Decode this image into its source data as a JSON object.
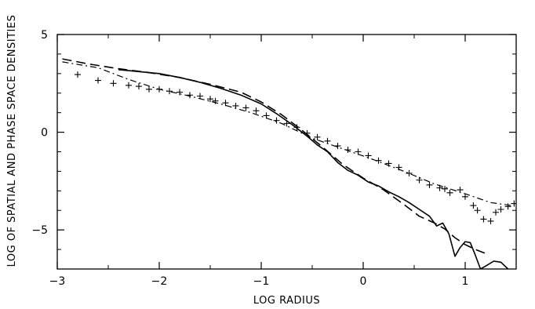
{
  "chart_data": {
    "type": "line",
    "title": "",
    "xlabel": "LOG RADIUS",
    "ylabel": "LOG OF SPATIAL AND PHASE SPACE DENSITIES",
    "xlim": [
      -3.0,
      1.5
    ],
    "ylim": [
      -7.0,
      5.0
    ],
    "x_ticks": [
      -3,
      -2,
      -1,
      0,
      1
    ],
    "x_tick_labels": [
      "−3",
      "−2",
      "−1",
      "0",
      "1"
    ],
    "y_ticks": [
      -5,
      0,
      5
    ],
    "y_tick_labels": [
      "−5",
      "0",
      "5"
    ],
    "grid": false,
    "legend": "none",
    "colors": {
      "ink": "#000000",
      "background": "#ffffff"
    },
    "series": [
      {
        "style": "solid",
        "points": [
          [
            -2.4,
            3.2
          ],
          [
            -2.2,
            3.1
          ],
          [
            -2.0,
            3.0
          ],
          [
            -1.8,
            2.8
          ],
          [
            -1.6,
            2.55
          ],
          [
            -1.4,
            2.25
          ],
          [
            -1.2,
            1.9
          ],
          [
            -1.0,
            1.45
          ],
          [
            -0.85,
            0.95
          ],
          [
            -0.7,
            0.4
          ],
          [
            -0.55,
            -0.2
          ],
          [
            -0.45,
            -0.65
          ],
          [
            -0.35,
            -1.0
          ],
          [
            -0.25,
            -1.55
          ],
          [
            -0.15,
            -1.95
          ],
          [
            -0.05,
            -2.2
          ],
          [
            0.05,
            -2.55
          ],
          [
            0.15,
            -2.75
          ],
          [
            0.25,
            -3.05
          ],
          [
            0.35,
            -3.3
          ],
          [
            0.45,
            -3.6
          ],
          [
            0.55,
            -3.95
          ],
          [
            0.65,
            -4.3
          ],
          [
            0.72,
            -4.8
          ],
          [
            0.78,
            -4.65
          ],
          [
            0.84,
            -5.2
          ],
          [
            0.9,
            -6.35
          ],
          [
            0.95,
            -5.9
          ],
          [
            1.0,
            -5.6
          ],
          [
            1.05,
            -5.65
          ],
          [
            1.1,
            -6.3
          ],
          [
            1.15,
            -7.0
          ],
          [
            1.2,
            -6.85
          ],
          [
            1.28,
            -6.6
          ],
          [
            1.35,
            -6.65
          ],
          [
            1.42,
            -7.0
          ]
        ]
      },
      {
        "style": "dashed",
        "points": [
          [
            -2.95,
            3.75
          ],
          [
            -2.7,
            3.5
          ],
          [
            -2.4,
            3.25
          ],
          [
            -2.1,
            3.05
          ],
          [
            -1.8,
            2.8
          ],
          [
            -1.5,
            2.45
          ],
          [
            -1.2,
            2.05
          ],
          [
            -1.0,
            1.55
          ],
          [
            -0.8,
            0.9
          ],
          [
            -0.6,
            0.1
          ],
          [
            -0.4,
            -0.75
          ],
          [
            -0.2,
            -1.65
          ],
          [
            0.0,
            -2.35
          ],
          [
            0.2,
            -2.95
          ],
          [
            0.4,
            -3.7
          ],
          [
            0.55,
            -4.3
          ],
          [
            0.7,
            -4.65
          ],
          [
            0.8,
            -4.95
          ],
          [
            0.9,
            -5.4
          ],
          [
            1.0,
            -5.75
          ],
          [
            1.1,
            -6.0
          ],
          [
            1.2,
            -6.2
          ]
        ]
      },
      {
        "style": "dash-dot",
        "points": [
          [
            -2.95,
            3.6
          ],
          [
            -2.6,
            3.3
          ],
          [
            -2.3,
            2.7
          ],
          [
            -2.0,
            2.2
          ],
          [
            -1.7,
            1.85
          ],
          [
            -1.4,
            1.45
          ],
          [
            -1.1,
            1.0
          ],
          [
            -0.8,
            0.45
          ],
          [
            -0.5,
            -0.3
          ],
          [
            -0.2,
            -0.85
          ],
          [
            0.1,
            -1.4
          ],
          [
            0.4,
            -2.0
          ],
          [
            0.7,
            -2.65
          ],
          [
            1.0,
            -3.15
          ],
          [
            1.25,
            -3.6
          ],
          [
            1.45,
            -3.75
          ]
        ]
      },
      {
        "style": "plus",
        "points": [
          [
            -2.8,
            2.95
          ],
          [
            -2.6,
            2.65
          ],
          [
            -2.45,
            2.5
          ],
          [
            -2.3,
            2.4
          ],
          [
            -2.2,
            2.35
          ],
          [
            -2.1,
            2.2
          ],
          [
            -2.0,
            2.2
          ],
          [
            -1.9,
            2.1
          ],
          [
            -1.8,
            2.05
          ],
          [
            -1.7,
            1.9
          ],
          [
            -1.6,
            1.85
          ],
          [
            -1.5,
            1.7
          ],
          [
            -1.45,
            1.6
          ],
          [
            -1.35,
            1.5
          ],
          [
            -1.25,
            1.35
          ],
          [
            -1.15,
            1.25
          ],
          [
            -1.05,
            1.1
          ],
          [
            -0.95,
            0.85
          ],
          [
            -0.85,
            0.6
          ],
          [
            -0.75,
            0.45
          ],
          [
            -0.65,
            0.25
          ],
          [
            -0.55,
            -0.05
          ],
          [
            -0.45,
            -0.25
          ],
          [
            -0.35,
            -0.45
          ],
          [
            -0.25,
            -0.7
          ],
          [
            -0.15,
            -0.9
          ],
          [
            -0.05,
            -1.0
          ],
          [
            0.05,
            -1.2
          ],
          [
            0.15,
            -1.45
          ],
          [
            0.25,
            -1.6
          ],
          [
            0.35,
            -1.8
          ],
          [
            0.45,
            -2.1
          ],
          [
            0.55,
            -2.45
          ],
          [
            0.65,
            -2.7
          ],
          [
            0.75,
            -2.85
          ],
          [
            0.8,
            -2.9
          ],
          [
            0.85,
            -3.1
          ],
          [
            0.95,
            -2.95
          ],
          [
            1.0,
            -3.3
          ],
          [
            1.08,
            -3.75
          ],
          [
            1.12,
            -4.0
          ],
          [
            1.18,
            -4.45
          ],
          [
            1.25,
            -4.55
          ],
          [
            1.3,
            -4.1
          ],
          [
            1.35,
            -3.95
          ],
          [
            1.42,
            -3.8
          ],
          [
            1.48,
            -3.65
          ]
        ]
      }
    ]
  }
}
